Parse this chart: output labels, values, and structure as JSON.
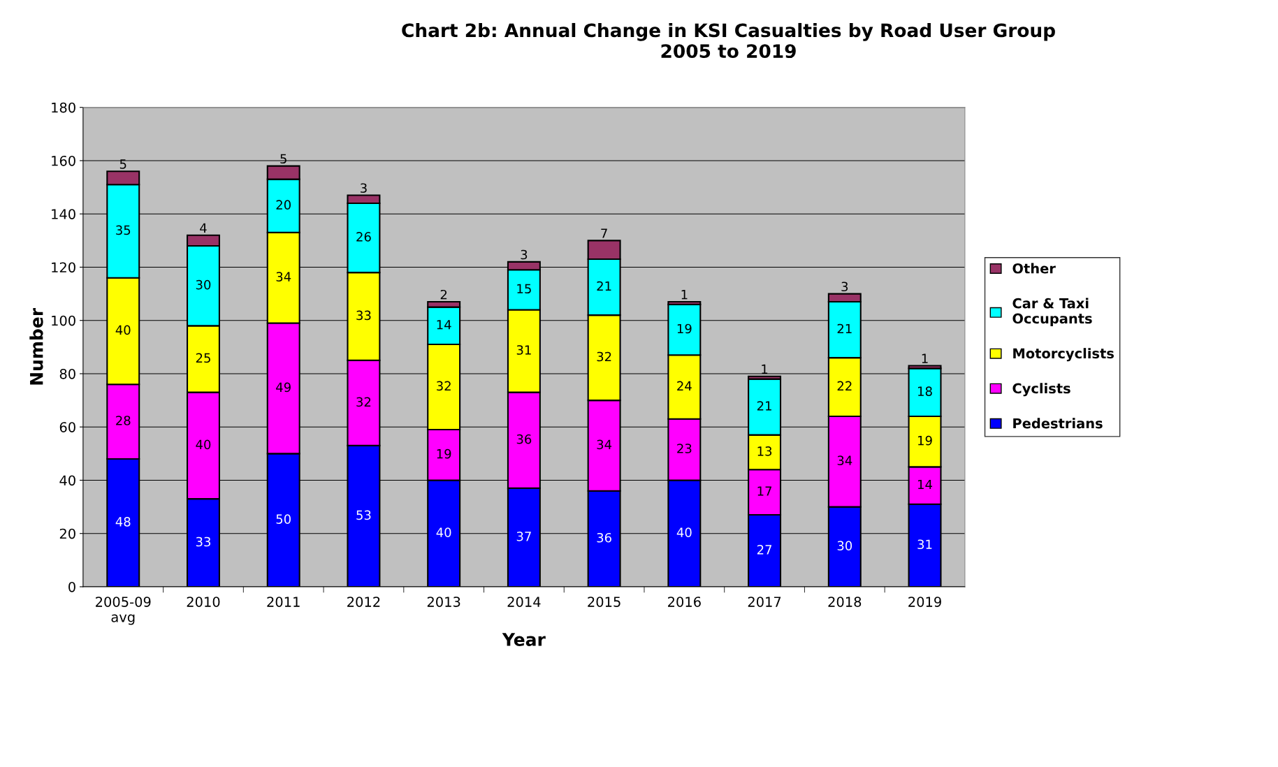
{
  "chart_data": {
    "type": "bar",
    "stacked": true,
    "title": "Chart 2b: Annual Change in KSI Casualties by Road User Group\n2005 to 2019",
    "xlabel": "Year",
    "ylabel": "Number",
    "categories": [
      "2005-09\navg",
      "2010",
      "2011",
      "2012",
      "2013",
      "2014",
      "2015",
      "2016",
      "2017",
      "2018",
      "2019"
    ],
    "series": [
      {
        "name": "Pedestrians",
        "color": "#0000ff",
        "values": [
          48,
          33,
          50,
          53,
          40,
          37,
          36,
          40,
          27,
          30,
          31
        ]
      },
      {
        "name": "Cyclists",
        "color": "#ff00ff",
        "values": [
          28,
          40,
          49,
          32,
          19,
          36,
          34,
          23,
          17,
          34,
          14
        ]
      },
      {
        "name": "Motorcyclists",
        "color": "#ffff00",
        "values": [
          40,
          25,
          34,
          33,
          32,
          31,
          32,
          24,
          13,
          22,
          19
        ]
      },
      {
        "name": "Car & Taxi\nOccupants",
        "color": "#00ffff",
        "values": [
          35,
          30,
          20,
          26,
          14,
          15,
          21,
          19,
          21,
          21,
          18
        ]
      },
      {
        "name": "Other",
        "color": "#993366",
        "values": [
          5,
          4,
          5,
          3,
          2,
          3,
          7,
          1,
          1,
          3,
          1
        ]
      }
    ],
    "ylim": [
      0,
      180
    ],
    "yticks": [
      0,
      20,
      40,
      60,
      80,
      100,
      120,
      140,
      160,
      180
    ],
    "grid": "y",
    "legend": "right",
    "data_labels": true
  }
}
